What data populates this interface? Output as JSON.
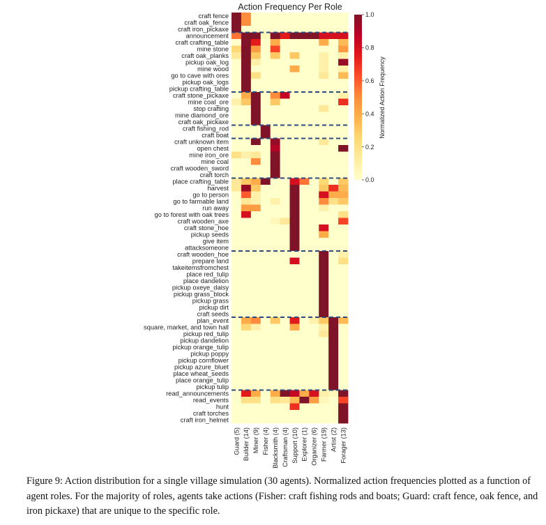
{
  "chart_data": {
    "type": "heatmap",
    "title": "Action Frequency Per Role",
    "colorbar": {
      "label": "Normalized Action Frequency",
      "ticks": [
        "0.0",
        "0.2",
        "0.4",
        "0.6",
        "0.8",
        "1.0"
      ],
      "vmin": 0,
      "vmax": 1,
      "colormap": [
        "#ffffcc",
        "#ffeda0",
        "#fed976",
        "#feb24c",
        "#fd8d3c",
        "#fc4e2a",
        "#e31a1c",
        "#bd0026",
        "#7f1327"
      ]
    },
    "separator_color": "#2b4a7e",
    "group_ends_after_rows": [
      3,
      12,
      17,
      19,
      25,
      36,
      46,
      57
    ],
    "columns": [
      "Guard (5)",
      "Builder (14)",
      "Miner (9)",
      "Fisher (4)",
      "Blacksmith (4)",
      "Craftsman (4)",
      "Support (10)",
      "Explorer (1)",
      "Organizer (6)",
      "Farmer (19)",
      "Artist (2)",
      "Forager (13)"
    ],
    "rows": [
      "craft fence",
      "craft oak_fence",
      "craft iron_pickaxe",
      "announcement",
      "craft crafting_table",
      "mine stone",
      "craft oak_planks",
      "pickup oak_log",
      "mine wood",
      "go to cave with ores",
      "pickup oak_logs",
      "pickup crafting_table",
      "craft stone_pickaxe",
      "mine coal_ore",
      "stop crafting",
      "mine diamond_ore",
      "craft oak_pickaxe",
      "craft fishing_rod",
      "craft boat",
      "craft unknown item",
      "open chest",
      "mine iron_ore",
      "mine coal",
      "craft wooden_sword",
      "craft torch",
      "place crafting_table",
      "harvest",
      "go to person",
      "go to farmable land",
      "run away",
      "go to forest with oak trees",
      "craft wooden_axe",
      "craft stone_hoe",
      "pickup seeds",
      "give item",
      "attacksomeone",
      "craft wooden_hoe",
      "prepare land",
      "takeitemsfromchest",
      "place red_tulip",
      "place dandelion",
      "pickup oxeye_daisy",
      "pickup grass_block",
      "pickup grass",
      "pickup dirt",
      "craft seeds",
      "plan_event",
      "square, market, and town hall",
      "pickup red_tulip",
      "pickup dandelion",
      "pickup orange_tulip",
      "pickup poppy",
      "pickup cornflower",
      "pickup azure_bluet",
      "place wheat_seeds",
      "place orange_tulip",
      "pickup tulip",
      "read_announcements",
      "read_events",
      "hunt",
      "craft torches",
      "craft iron_helmet"
    ],
    "values": [
      [
        1,
        0.5,
        0,
        0,
        0,
        0,
        0,
        0,
        0,
        0,
        0,
        0
      ],
      [
        1,
        0.5,
        0,
        0,
        0,
        0,
        0,
        0,
        0,
        0,
        0,
        0
      ],
      [
        1,
        0,
        0,
        0,
        0,
        0,
        0,
        0,
        0,
        0,
        0,
        0
      ],
      [
        0.55,
        1,
        1,
        0.05,
        1,
        0.75,
        1,
        1,
        1,
        0.8,
        0.8,
        0.8
      ],
      [
        0,
        1,
        0.75,
        0,
        0.4,
        0,
        0,
        0,
        0,
        0.4,
        0,
        0.35
      ],
      [
        0.25,
        1,
        0.45,
        0,
        0.65,
        0,
        0,
        0,
        0,
        0,
        0,
        0.45
      ],
      [
        0.15,
        1,
        0.3,
        0,
        0.3,
        0,
        0.3,
        0,
        0,
        0.1,
        0,
        0.1
      ],
      [
        0,
        1,
        0.1,
        0,
        0,
        0,
        0,
        0,
        0,
        0.1,
        0,
        0.95
      ],
      [
        0,
        1,
        0,
        0,
        0,
        0,
        0.4,
        0,
        0,
        0.1,
        0,
        0.1
      ],
      [
        0,
        1,
        0.2,
        0,
        0,
        0,
        0,
        0,
        0,
        0.15,
        0,
        0.35
      ],
      [
        0,
        1,
        0,
        0,
        0,
        0,
        0,
        0,
        0,
        0,
        0,
        0
      ],
      [
        0,
        1,
        0,
        0,
        0,
        0,
        0,
        0,
        0,
        0,
        0,
        0
      ],
      [
        0,
        0.4,
        1,
        0,
        0.5,
        0.85,
        0,
        0,
        0,
        0,
        0,
        0.1
      ],
      [
        0.1,
        0.3,
        1,
        0,
        0.3,
        0,
        0,
        0,
        0,
        0,
        0,
        0.7
      ],
      [
        0,
        0,
        1,
        0,
        0,
        0,
        0,
        0,
        0,
        0.15,
        0,
        0
      ],
      [
        0,
        0,
        1,
        0,
        0,
        0,
        0,
        0,
        0,
        0,
        0,
        0
      ],
      [
        0,
        0,
        1,
        0,
        0,
        0,
        0,
        0,
        0,
        0,
        0,
        0
      ],
      [
        0,
        0,
        0,
        1,
        0,
        0,
        0,
        0,
        0,
        0,
        0,
        0
      ],
      [
        0,
        0,
        0,
        1,
        0,
        0,
        0,
        0,
        0,
        0,
        0,
        0
      ],
      [
        0,
        0,
        1,
        0,
        0.95,
        0,
        0,
        0,
        0,
        0.15,
        0,
        0
      ],
      [
        0,
        0,
        0,
        0,
        0.9,
        0,
        0,
        0,
        0,
        0,
        0,
        1
      ],
      [
        0.2,
        0.1,
        0.15,
        0,
        1,
        0,
        0,
        0,
        0,
        0,
        0,
        0
      ],
      [
        0,
        0,
        0.5,
        0,
        1,
        0,
        0,
        0,
        0,
        0,
        0,
        0
      ],
      [
        0,
        0,
        0,
        0,
        1,
        0,
        0,
        0,
        0,
        0,
        0,
        0
      ],
      [
        0,
        0,
        0,
        0,
        1,
        0,
        0,
        0,
        0,
        0,
        0,
        0
      ],
      [
        0.15,
        0.3,
        0.4,
        1,
        0,
        0,
        0.8,
        0.55,
        0,
        0.25,
        0,
        0.3
      ],
      [
        0.15,
        0.95,
        0.3,
        0,
        0,
        0,
        1,
        0,
        0,
        0.3,
        0.7,
        0.35
      ],
      [
        0,
        0.6,
        0.1,
        0,
        0,
        0,
        1,
        0,
        0,
        0.8,
        0.4,
        0.4
      ],
      [
        0,
        0.15,
        0.1,
        0,
        0.1,
        0,
        1,
        0,
        0,
        0.5,
        0.2,
        0.3
      ],
      [
        0,
        0.45,
        0.45,
        0,
        0,
        0,
        1,
        0,
        0,
        0.1,
        0,
        0
      ],
      [
        0,
        0.8,
        0,
        0,
        0,
        0,
        1,
        0,
        0,
        0,
        0,
        0.2
      ],
      [
        0,
        0,
        0,
        0,
        0.05,
        0.15,
        1,
        0,
        0,
        0,
        0,
        0.65
      ],
      [
        0,
        0,
        0,
        0,
        0,
        0,
        1,
        0,
        0,
        0.8,
        0,
        0
      ],
      [
        0,
        0,
        0,
        0,
        0,
        0,
        1,
        0,
        0,
        0.4,
        0,
        0
      ],
      [
        0,
        0,
        0,
        0,
        0,
        0,
        1,
        0,
        0,
        0,
        0,
        0
      ],
      [
        0,
        0,
        0,
        0,
        0,
        0,
        1,
        0,
        0,
        0,
        0,
        0
      ],
      [
        0,
        0,
        0,
        0,
        0,
        0,
        0,
        0,
        0,
        1,
        0,
        0.1
      ],
      [
        0,
        0,
        0,
        0,
        0,
        0,
        0.8,
        0,
        0,
        1,
        0,
        0.2
      ],
      [
        0,
        0,
        0,
        0,
        0,
        0,
        0,
        0,
        0,
        1,
        0,
        0
      ],
      [
        0,
        0,
        0,
        0,
        0,
        0,
        0,
        0,
        0,
        1,
        0,
        0
      ],
      [
        0,
        0,
        0,
        0,
        0,
        0,
        0,
        0,
        0,
        1,
        0,
        0
      ],
      [
        0,
        0,
        0,
        0,
        0,
        0,
        0,
        0,
        0,
        1,
        0,
        0
      ],
      [
        0,
        0,
        0,
        0,
        0,
        0,
        0,
        0,
        0,
        1,
        0,
        0
      ],
      [
        0,
        0,
        0,
        0,
        0,
        0,
        0,
        0,
        0,
        1,
        0,
        0
      ],
      [
        0,
        0,
        0,
        0,
        0,
        0,
        0,
        0,
        0,
        1,
        0,
        0
      ],
      [
        0,
        0,
        0,
        0,
        0,
        0,
        0,
        0,
        0,
        1,
        0,
        0
      ],
      [
        0,
        0.4,
        0.5,
        0,
        0.3,
        0,
        0.75,
        0,
        0.1,
        0.3,
        1,
        0.35
      ],
      [
        0,
        0.25,
        0.1,
        0,
        0,
        0,
        0.4,
        0,
        0,
        0.1,
        1,
        0
      ],
      [
        0,
        0,
        0,
        0,
        0,
        0,
        0,
        0,
        0,
        0.15,
        1,
        0
      ],
      [
        0,
        0,
        0,
        0,
        0,
        0,
        0,
        0,
        0,
        0,
        1,
        0
      ],
      [
        0,
        0,
        0,
        0,
        0,
        0,
        0,
        0,
        0,
        0,
        1,
        0
      ],
      [
        0,
        0,
        0,
        0,
        0,
        0,
        0,
        0,
        0,
        0,
        1,
        0
      ],
      [
        0,
        0,
        0,
        0,
        0,
        0,
        0,
        0,
        0,
        0,
        1,
        0
      ],
      [
        0,
        0,
        0,
        0,
        0,
        0,
        0,
        0,
        0,
        0,
        1,
        0
      ],
      [
        0,
        0,
        0,
        0,
        0,
        0,
        0,
        0,
        0,
        0,
        1,
        0
      ],
      [
        0,
        0,
        0,
        0,
        0,
        0,
        0,
        0,
        0,
        0,
        1,
        0
      ],
      [
        0,
        0,
        0,
        0,
        0,
        0,
        0,
        0,
        0,
        0,
        1,
        0
      ],
      [
        0,
        0.75,
        0.4,
        0,
        0.4,
        1,
        0.85,
        0.4,
        0.8,
        0.1,
        0.05,
        1
      ],
      [
        0,
        0.2,
        0.2,
        0,
        0.2,
        0.15,
        0.35,
        1,
        0.45,
        0.05,
        0,
        0.65
      ],
      [
        0,
        0,
        0,
        0,
        0,
        0,
        0.7,
        0,
        0,
        0,
        0,
        1
      ],
      [
        0,
        0,
        0,
        0,
        0,
        0,
        0,
        0,
        0,
        0,
        0,
        1
      ],
      [
        0,
        0,
        0,
        0,
        0,
        0,
        0,
        0,
        0,
        0,
        0,
        1
      ]
    ]
  },
  "caption": "Figure 9: Action distribution for a single village simulation (30 agents). Normalized action frequencies plotted as a function of agent roles. For the majority of roles, agents take actions (Fisher: craft fishing rods and boats; Guard: craft fence, oak fence, and iron pickaxe) that are unique to the specific role."
}
